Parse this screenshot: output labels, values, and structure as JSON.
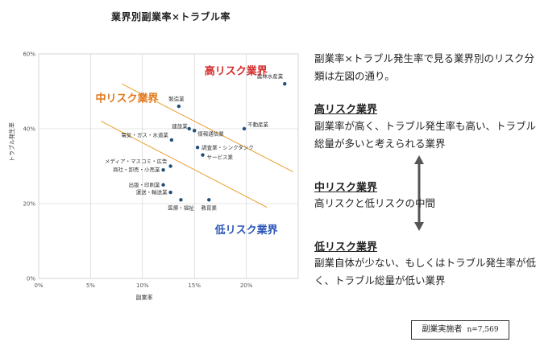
{
  "chart_data": {
    "type": "scatter",
    "title": "業界別副業率×トラブル率",
    "xlabel": "副業率",
    "ylabel": "トラブル発生率",
    "xlim": [
      0,
      0.25
    ],
    "ylim": [
      0,
      0.6
    ],
    "x_ticks": [
      "0%",
      "5%",
      "10%",
      "15%",
      "20%"
    ],
    "y_ticks": [
      "0%",
      "20%",
      "40%",
      "60%"
    ],
    "grid": true,
    "points": [
      {
        "label": "農林水産業",
        "x": 0.237,
        "y": 0.52
      },
      {
        "label": "製造業",
        "x": 0.135,
        "y": 0.46
      },
      {
        "label": "不動産業",
        "x": 0.198,
        "y": 0.4
      },
      {
        "label": "建設業",
        "x": 0.145,
        "y": 0.4
      },
      {
        "label": "情報通信業",
        "x": 0.15,
        "y": 0.395
      },
      {
        "label": "電気・ガス・水道業",
        "x": 0.128,
        "y": 0.37
      },
      {
        "label": "調査業・シンクタンク",
        "x": 0.153,
        "y": 0.35
      },
      {
        "label": "サービス業",
        "x": 0.158,
        "y": 0.33
      },
      {
        "label": "メディア・マスコミ・広告",
        "x": 0.127,
        "y": 0.3
      },
      {
        "label": "商社・卸売・小売業",
        "x": 0.12,
        "y": 0.29
      },
      {
        "label": "出版・印刷業",
        "x": 0.12,
        "y": 0.25
      },
      {
        "label": "運送・輸送業",
        "x": 0.127,
        "y": 0.23
      },
      {
        "label": "教育業",
        "x": 0.164,
        "y": 0.21
      },
      {
        "label": "医療・福祉",
        "x": 0.137,
        "y": 0.21
      }
    ],
    "zone_labels": [
      {
        "text": "高リスク業界",
        "color": "#d42a2a"
      },
      {
        "text": "中リスク業界",
        "color": "#e0771a"
      },
      {
        "text": "低リスク業界",
        "color": "#2a55b8"
      }
    ],
    "colors": {
      "points": "#1f4e79",
      "separator": "#e8a030",
      "grid": "#cccccc"
    }
  },
  "panel": {
    "intro": "副業率×トラブル発生率で見る業界別のリスク分類は左図の通り。",
    "high_title": "高リスク業界",
    "high_text": "副業率が高く、トラブル発生率も高い、トラブル総量が多いと考えられる業界",
    "mid_title": "中リスク業界",
    "mid_text": "高リスクと低リスクの中間",
    "low_title": "低リスク業界",
    "low_text": "副業自体が少ない、もしくはトラブル発生率が低く、トラブル総量が低い業界",
    "sample_label": "副業実施者",
    "sample_n": "n=7,569"
  }
}
